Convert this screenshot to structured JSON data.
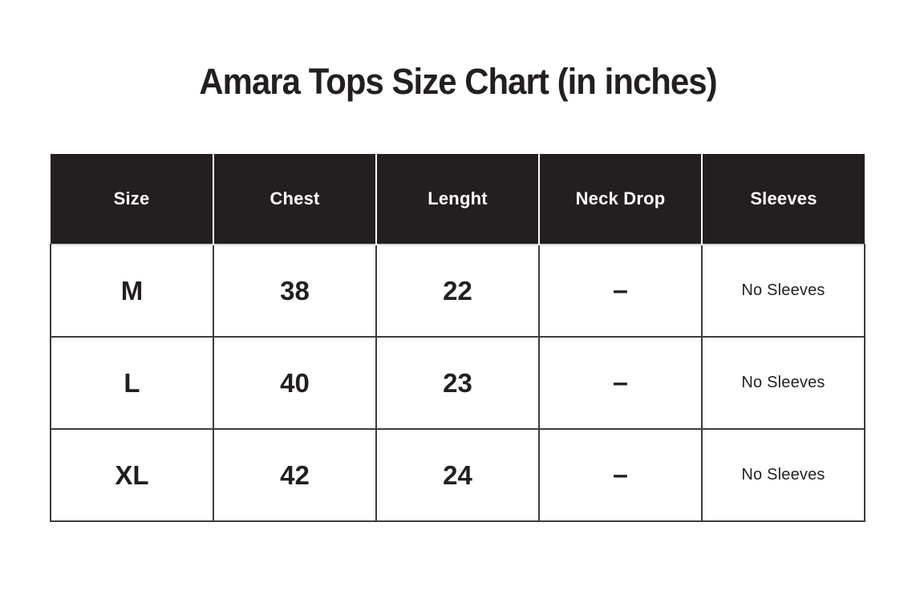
{
  "page": {
    "background": "#ffffff"
  },
  "colors": {
    "header_bg": "#231f20",
    "header_text": "#ffffff",
    "body_text": "#231f20",
    "body_border": "#3d3d3d",
    "header_divider": "#ffffff",
    "header_bottom_line": "#d4d4d4",
    "page_bg": "#ffffff"
  },
  "chart_data": {
    "type": "table",
    "title": "Amara Tops Size Chart (in inches)",
    "columns": [
      "Size",
      "Chest",
      "Lenght",
      "Neck Drop",
      "Sleeves"
    ],
    "rows": [
      [
        "M",
        "38",
        "22",
        "–",
        "No Sleeves"
      ],
      [
        "L",
        "40",
        "23",
        "–",
        "No Sleeves"
      ],
      [
        "XL",
        "42",
        "24",
        "–",
        "No Sleeves"
      ]
    ]
  }
}
